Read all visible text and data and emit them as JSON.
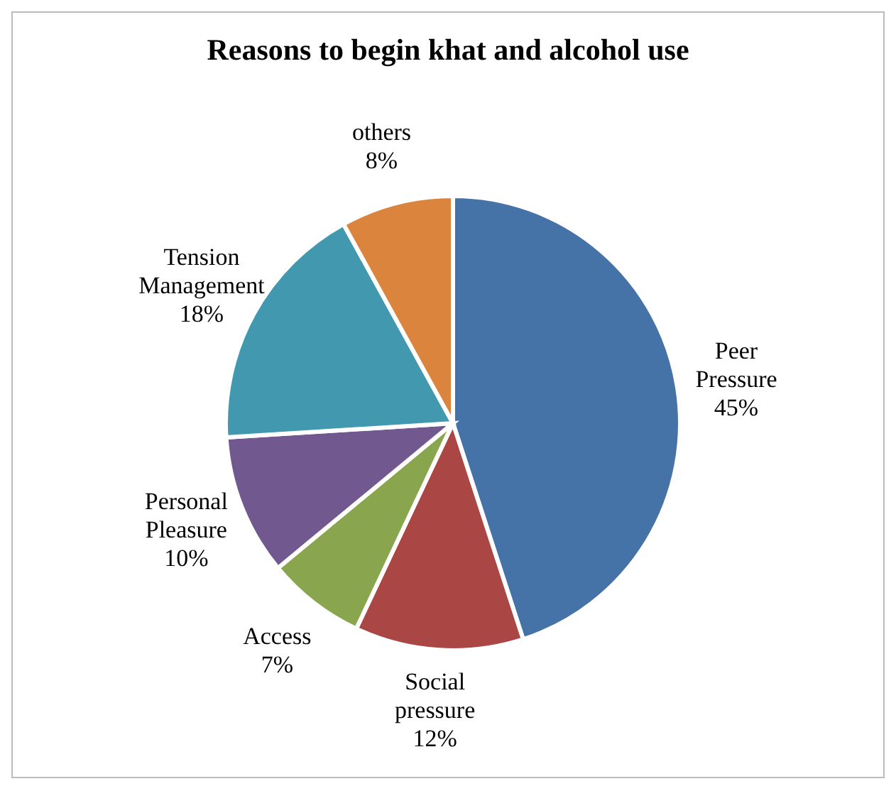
{
  "chart_data": {
    "type": "pie",
    "title": "Reasons to begin khat and alcohol use",
    "categories": [
      "Peer Pressure",
      "Social pressure",
      "Access",
      "Personal Pleasure",
      "Tension Management",
      "others"
    ],
    "values": [
      45,
      12,
      7,
      10,
      18,
      8
    ],
    "colors": [
      "#4572a7",
      "#aa4643",
      "#89a54e",
      "#71588f",
      "#4198af",
      "#db843d"
    ],
    "value_labels": [
      "45%",
      "12%",
      "7%",
      "10%",
      "18%",
      "8%"
    ],
    "data_labels": true
  }
}
